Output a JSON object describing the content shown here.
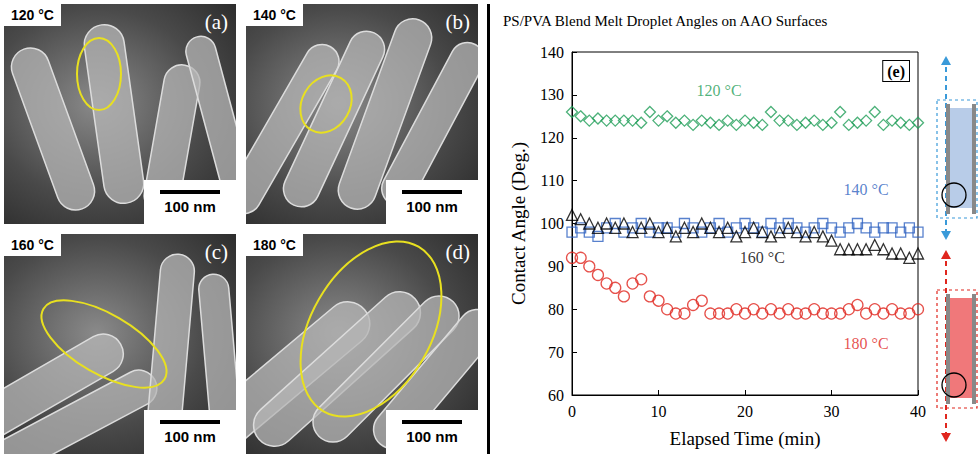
{
  "sem_panels": [
    {
      "letter": "(a)",
      "temperature": "120 °C",
      "scale_bar": "100 nm"
    },
    {
      "letter": "(b)",
      "temperature": "140 °C",
      "scale_bar": "100 nm"
    },
    {
      "letter": "(c)",
      "temperature": "160 °C",
      "scale_bar": "100 nm"
    },
    {
      "letter": "(d)",
      "temperature": "180 °C",
      "scale_bar": "100 nm"
    }
  ],
  "chart_data": {
    "type": "scatter",
    "title": "PS/PVA Blend Melt Droplet Angles on AAO Surfaces",
    "panel_label": "(e)",
    "x_label": "Elapsed Time (min)",
    "y_label": "Contact Angle (Deg.)",
    "xlim": [
      0,
      40
    ],
    "xticks": [
      0,
      10,
      20,
      30,
      40
    ],
    "ylim": [
      60,
      140
    ],
    "yticks": [
      60,
      70,
      80,
      90,
      100,
      110,
      120,
      130,
      140
    ],
    "grid": false,
    "x": [
      0,
      1,
      2,
      3,
      4,
      5,
      6,
      7,
      8,
      9,
      10,
      11,
      12,
      13,
      14,
      15,
      16,
      17,
      18,
      19,
      20,
      21,
      22,
      23,
      24,
      25,
      26,
      27,
      28,
      29,
      30,
      31,
      32,
      33,
      34,
      35,
      36,
      37,
      38,
      39,
      40
    ],
    "series": [
      {
        "color": "#1f9e58",
        "marker": "diamond",
        "values": [
          126,
          125,
          124,
          124.5,
          124,
          124,
          124,
          124,
          123.5,
          126,
          124,
          125,
          123.5,
          124,
          123,
          124,
          123.5,
          123,
          124,
          123,
          124,
          123.5,
          123,
          126,
          124,
          124,
          123,
          123.5,
          124,
          123,
          123.5,
          126,
          123,
          123.5,
          124,
          126,
          123,
          124,
          123.5,
          123,
          123.5
        ]
      },
      {
        "color": "#2e62c0",
        "marker": "square",
        "values": [
          98,
          99,
          98,
          97,
          99,
          100,
          98,
          99,
          100,
          98,
          99,
          99,
          98,
          100,
          99,
          98,
          99,
          100,
          98,
          99,
          100,
          99,
          98,
          100,
          99,
          100,
          99,
          98,
          99,
          100,
          99,
          98,
          99,
          100,
          99,
          98,
          99,
          99,
          98,
          99,
          98
        ]
      },
      {
        "color": "#000000",
        "marker": "triangle",
        "values": [
          102,
          101,
          100,
          99,
          100,
          99,
          100,
          98,
          99,
          100,
          98,
          99,
          97,
          99,
          98,
          100,
          99,
          98,
          99,
          97,
          98,
          99,
          98,
          97,
          98,
          99,
          98,
          97,
          98,
          97,
          96,
          94,
          94,
          94,
          94,
          95,
          94,
          93,
          93,
          92,
          93
        ]
      },
      {
        "color": "#e0261e",
        "marker": "circle",
        "values": [
          92,
          92,
          90,
          88,
          86,
          85,
          83,
          86,
          87,
          83,
          82,
          80,
          79,
          79,
          81,
          82,
          79,
          79,
          79,
          80,
          79,
          80,
          79,
          80,
          79,
          80,
          79,
          79,
          80,
          79,
          79,
          79,
          80,
          81,
          79,
          80,
          79,
          80,
          79,
          79,
          80
        ]
      }
    ],
    "annotations": [
      {
        "text": "120 °C",
        "x": 17,
        "y": 131,
        "color": "#1f9e58"
      },
      {
        "text": "140 °C",
        "x": 34,
        "y": 108,
        "color": "#2e62c0"
      },
      {
        "text": "160 °C",
        "x": 22,
        "y": 92,
        "color": "#000000"
      },
      {
        "text": "180 °C",
        "x": 34,
        "y": 72,
        "color": "#e0261e"
      }
    ]
  }
}
